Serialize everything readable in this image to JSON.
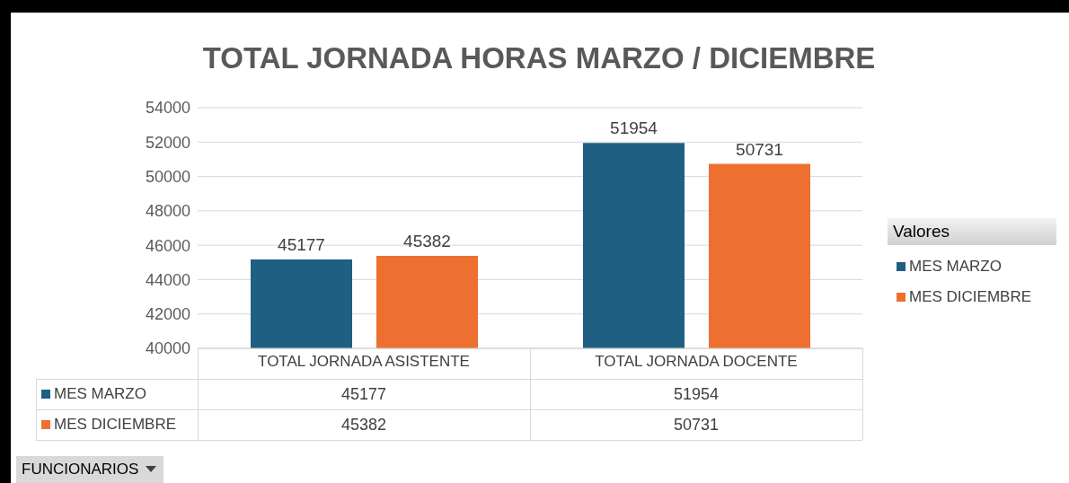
{
  "chart_data": {
    "type": "bar",
    "title": "TOTAL JORNADA HORAS MARZO / DICIEMBRE",
    "categories": [
      "TOTAL JORNADA ASISTENTE",
      "TOTAL JORNADA DOCENTE"
    ],
    "series": [
      {
        "name": "MES MARZO",
        "color": "#1f5f82",
        "values": [
          45177,
          51954
        ],
        "value_labels": [
          "45177",
          "51954"
        ]
      },
      {
        "name": "MES DICIEMBRE",
        "color": "#ed7031",
        "values": [
          45382,
          50731
        ],
        "value_labels": [
          "45382",
          "50731"
        ]
      }
    ],
    "ylim": [
      40000,
      54000
    ],
    "yticks": [
      40000,
      42000,
      44000,
      46000,
      48000,
      50000,
      52000,
      54000
    ],
    "grid": "y",
    "legend": "right",
    "legend_title": "Valores",
    "data_labels": true,
    "annotations": [
      "FUNCIONARIOS",
      "45177",
      "51954",
      "45382",
      "50731"
    ]
  }
}
